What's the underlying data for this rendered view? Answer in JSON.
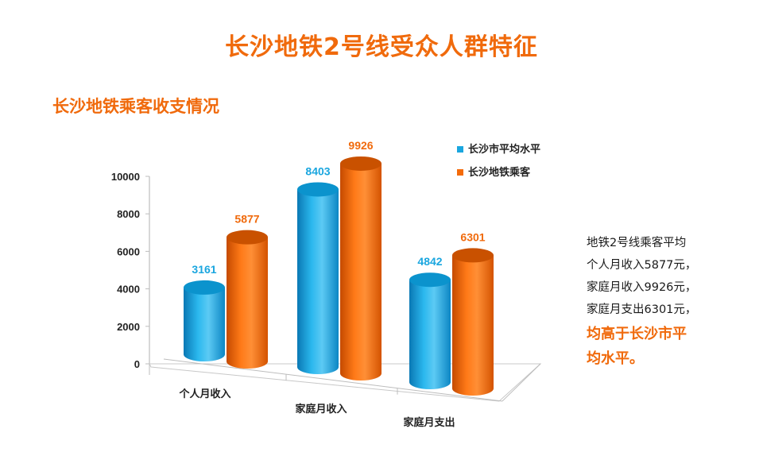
{
  "page": {
    "title": "长沙地铁2号线受众人群特征",
    "section_title": "长沙地铁乘客收支情况"
  },
  "note": {
    "lines": [
      "地铁2号线乘客平均",
      "个人月收入5877元，",
      "家庭月收入9926元，",
      "家庭月支出6301元，"
    ],
    "highlight_lines": [
      "均高于长沙市平",
      "均水平。"
    ]
  },
  "chart_data": {
    "type": "bar",
    "categories": [
      "个人月收入",
      "家庭月收入",
      "家庭月支出"
    ],
    "series": [
      {
        "name": "长沙市平均水平",
        "values": [
          3161,
          8403,
          4842
        ],
        "color": "#1aa6df"
      },
      {
        "name": "长沙地铁乘客",
        "values": [
          5877,
          9926,
          6301
        ],
        "color": "#f46b0a"
      }
    ],
    "y_ticks": [
      "0",
      "2000",
      "4000",
      "6000",
      "8000",
      "10000"
    ],
    "ylim": [
      0,
      10000
    ],
    "legend_position": "top-right",
    "grid": false,
    "colors": {
      "label_blue": "#1aa6df",
      "label_orange": "#f06a0c"
    }
  }
}
